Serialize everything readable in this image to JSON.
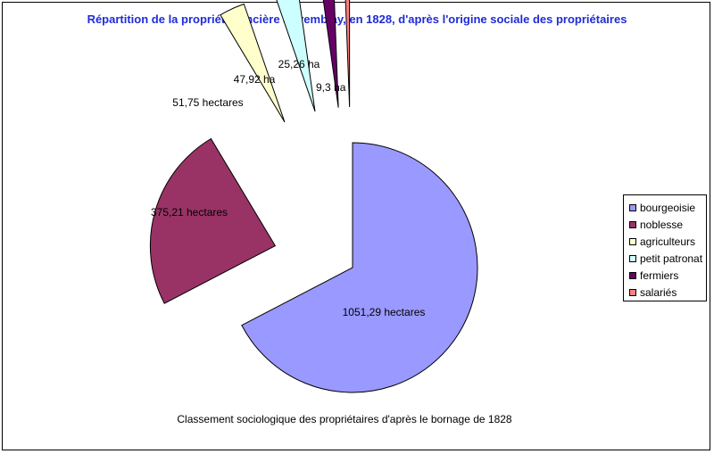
{
  "chart_data": {
    "type": "pie",
    "title": "Répartition de la propriété foncière à Tremblay, en 1828, d'après l'origine sociale des propriétaires",
    "subtitle": "Classement sociologique des propriétaires d'après le bornage de 1828",
    "legend_position": "right",
    "exploded": true,
    "slices": [
      {
        "name": "bourgeoisie",
        "value": 1051.29,
        "label": "1051,29 hectares",
        "color": "#9999ff"
      },
      {
        "name": "noblesse",
        "value": 375.21,
        "label": "375,21 hectares",
        "color": "#993366"
      },
      {
        "name": "agriculteurs",
        "value": 51.75,
        "label": "51,75 hectares",
        "color": "#ffffcc"
      },
      {
        "name": "petit patronat",
        "value": 47.92,
        "label": "47,92 ha",
        "color": "#ccffff"
      },
      {
        "name": "fermiers",
        "value": 25.26,
        "label": "25,26 ha",
        "color": "#660066"
      },
      {
        "name": "salariés",
        "value": 9.3,
        "label": "9,3 ha",
        "color": "#ff8080"
      }
    ]
  }
}
